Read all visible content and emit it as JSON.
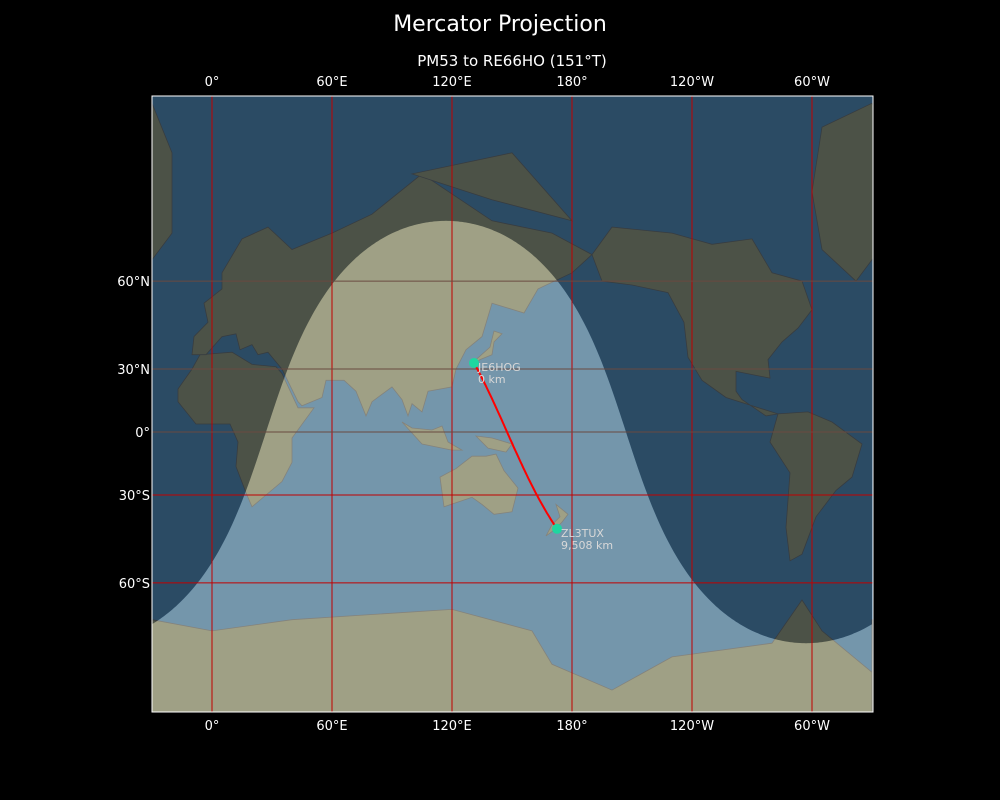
{
  "title": "Mercator Projection",
  "subtitle": "PM53 to RE66HO (151°T)",
  "map": {
    "projection": "Mercator",
    "lon_ticks": [
      {
        "lon": 0,
        "label": "0°"
      },
      {
        "lon": 60,
        "label": "60°E"
      },
      {
        "lon": 120,
        "label": "120°E"
      },
      {
        "lon": 180,
        "label": "180°"
      },
      {
        "lon": 240,
        "label": "120°W"
      },
      {
        "lon": 300,
        "label": "60°W"
      }
    ],
    "lat_ticks": [
      {
        "lat": 60,
        "label": "60°N"
      },
      {
        "lat": 30,
        "label": "30°N"
      },
      {
        "lat": 0,
        "label": "0°"
      },
      {
        "lat": -30,
        "label": "30°S"
      },
      {
        "lat": -60,
        "label": "60°S"
      }
    ],
    "stations": [
      {
        "call": "JE6HOG",
        "distance": "0 km",
        "lat": 32.6,
        "lon": 131
      },
      {
        "call": "ZL3TUX",
        "distance": "9,508 km",
        "lat": -43.5,
        "lon": 172.5
      }
    ],
    "colors": {
      "path": "#ff0000",
      "station": "#1fd6a0",
      "grid": "#c00000"
    }
  }
}
